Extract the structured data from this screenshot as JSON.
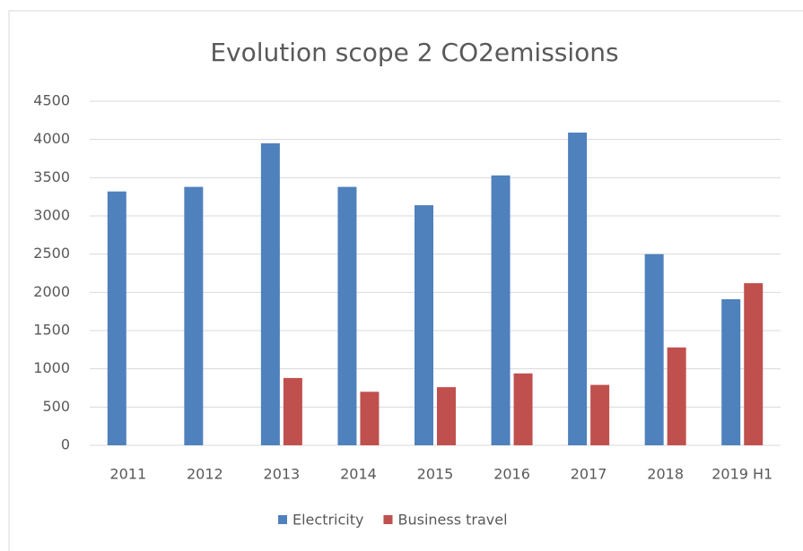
{
  "chart_data": {
    "type": "bar",
    "title": "Evolution scope 2 CO2emissions",
    "categories": [
      "2011",
      "2012",
      "2013",
      "2014",
      "2015",
      "2016",
      "2017",
      "2018",
      "2019 H1"
    ],
    "series": [
      {
        "name": "Electricity",
        "color": "#4f81bd",
        "values": [
          3320,
          3380,
          3950,
          3380,
          3140,
          3530,
          4090,
          2500,
          1910
        ]
      },
      {
        "name": "Business travel",
        "color": "#c0504d",
        "values": [
          null,
          null,
          880,
          700,
          760,
          940,
          790,
          1280,
          2120
        ]
      }
    ],
    "ylim": [
      0,
      4500
    ],
    "yticks": [
      0,
      500,
      1000,
      1500,
      2000,
      2500,
      3000,
      3500,
      4000,
      4500
    ],
    "grid": true,
    "legend": "bottom"
  }
}
